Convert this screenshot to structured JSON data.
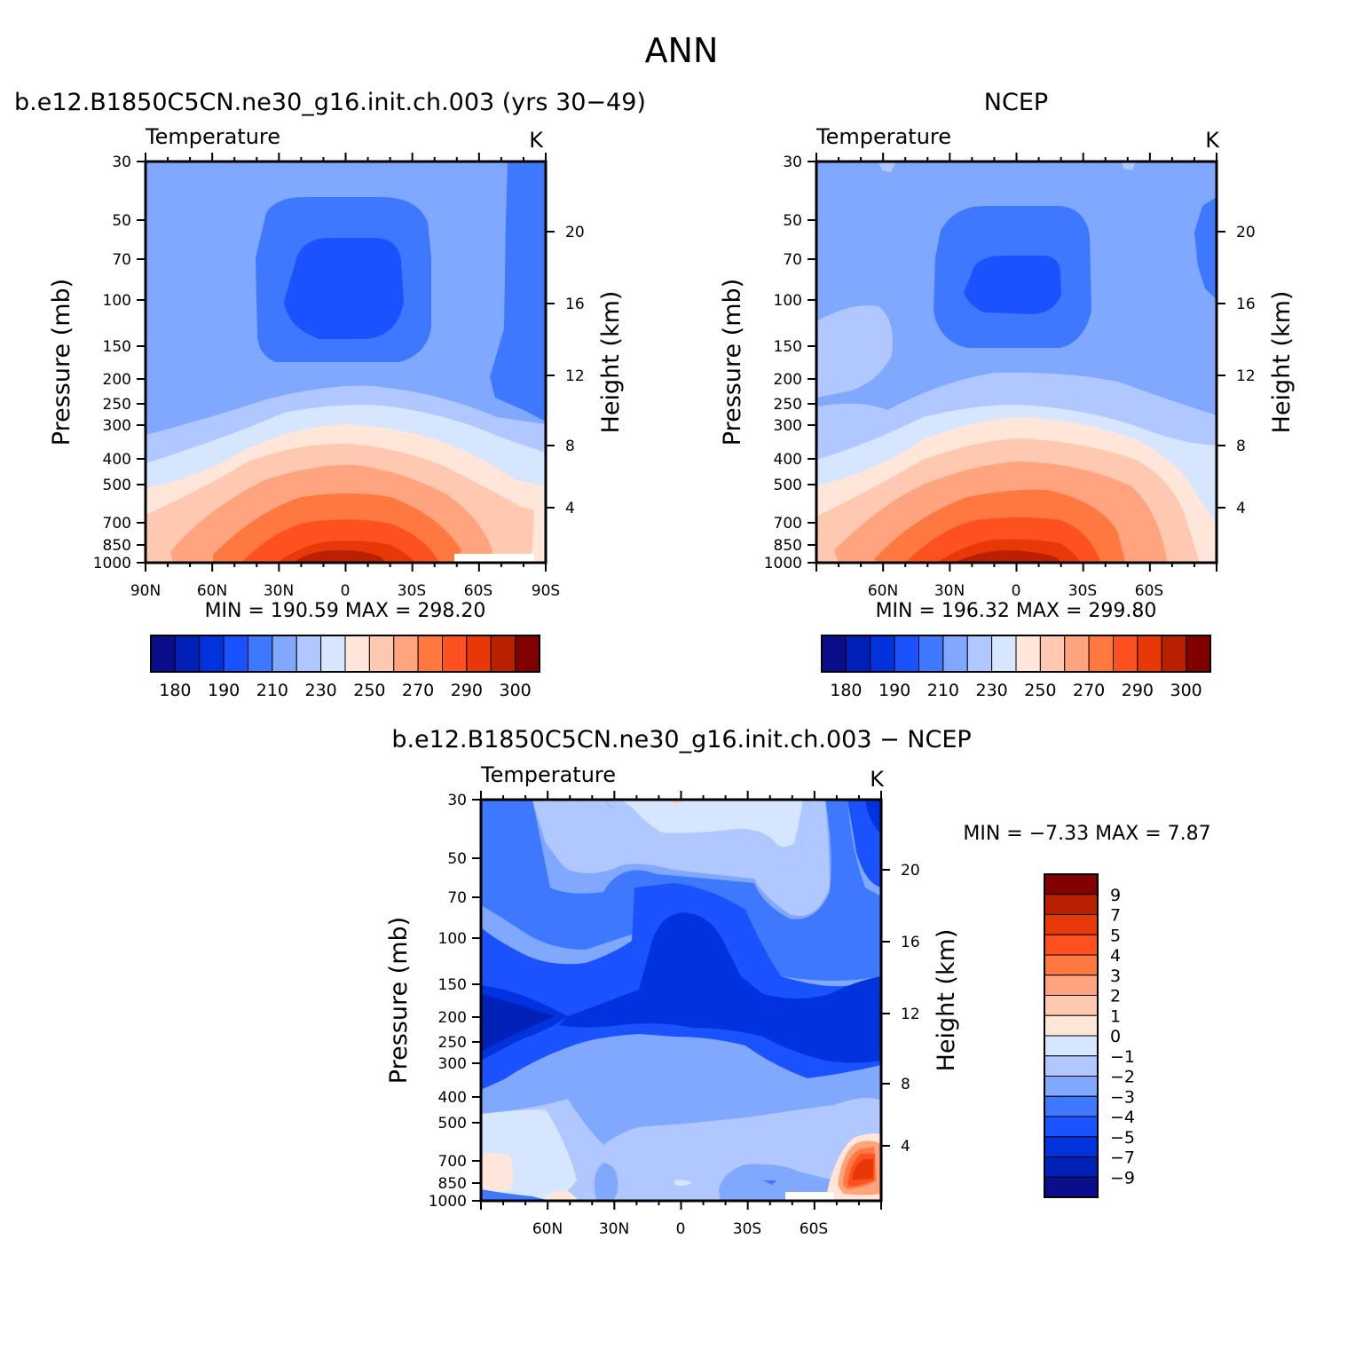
{
  "figure_title": "ANN",
  "panels": {
    "model": {
      "title": "b.e12.B1850C5CN.ne30_g16.init.ch.003 (yrs 30−49)",
      "min_max": "MIN =  190.59   MAX =  298.20"
    },
    "obs": {
      "title": "NCEP",
      "min_max": "MIN =  196.32   MAX =  299.80"
    },
    "diff": {
      "title": "b.e12.B1850C5CN.ne30_g16.init.ch.003 − NCEP",
      "min_max": "MIN =   −7.33   MAX =    7.87"
    }
  },
  "chart_data": [
    {
      "type": "heatmap",
      "panel": "model",
      "variable_label": "Temperature",
      "units": "K",
      "ylabel": "Pressure (mb)",
      "y2label": "Height (km)",
      "ylim": [
        1000,
        30
      ],
      "yscale": "log",
      "pressure_ticks": [
        "30",
        "50",
        "70",
        "100",
        "150",
        "200",
        "250",
        "300",
        "400",
        "500",
        "700",
        "850",
        "1000"
      ],
      "height_ticks": [
        "20",
        "16",
        "12",
        "8",
        "4"
      ],
      "x_ticks": [
        "90N",
        "60N",
        "30N",
        "0",
        "30S",
        "60S",
        "90S"
      ],
      "xlim": [
        90,
        -90
      ],
      "min": 190.59,
      "max": 298.2,
      "colorbar_labels": [
        "180",
        "190",
        "210",
        "230",
        "250",
        "270",
        "290",
        "300"
      ],
      "colors": [
        "#0a0e8c",
        "#0020b8",
        "#0033dd",
        "#1a52ff",
        "#3d78ff",
        "#80a8ff",
        "#b0c8ff",
        "#d6e6ff",
        "#ffe6d8",
        "#ffc8b0",
        "#ffa47e",
        "#ff7840",
        "#ff5020",
        "#e83808",
        "#b82000",
        "#800000"
      ]
    },
    {
      "type": "heatmap",
      "panel": "obs",
      "variable_label": "Temperature",
      "units": "K",
      "ylabel": "Pressure (mb)",
      "y2label": "Height (km)",
      "ylim": [
        1000,
        30
      ],
      "yscale": "log",
      "pressure_ticks": [
        "30",
        "50",
        "70",
        "100",
        "150",
        "200",
        "250",
        "300",
        "400",
        "500",
        "700",
        "850",
        "1000"
      ],
      "height_ticks": [
        "20",
        "16",
        "12",
        "8",
        "4"
      ],
      "x_ticks": [
        "60N",
        "30N",
        "0",
        "30S",
        "60S"
      ],
      "xlim": [
        90,
        -90
      ],
      "min": 196.32,
      "max": 299.8,
      "colorbar_labels": [
        "180",
        "190",
        "210",
        "230",
        "250",
        "270",
        "290",
        "300"
      ],
      "colors": [
        "#0a0e8c",
        "#0020b8",
        "#0033dd",
        "#1a52ff",
        "#3d78ff",
        "#80a8ff",
        "#b0c8ff",
        "#d6e6ff",
        "#ffe6d8",
        "#ffc8b0",
        "#ffa47e",
        "#ff7840",
        "#ff5020",
        "#e83808",
        "#b82000",
        "#800000"
      ]
    },
    {
      "type": "heatmap",
      "panel": "diff",
      "variable_label": "Temperature",
      "units": "K",
      "ylabel": "Pressure (mb)",
      "y2label": "Height (km)",
      "ylim": [
        1000,
        30
      ],
      "yscale": "log",
      "pressure_ticks": [
        "30",
        "50",
        "70",
        "100",
        "150",
        "200",
        "250",
        "300",
        "400",
        "500",
        "700",
        "850",
        "1000"
      ],
      "height_ticks": [
        "20",
        "16",
        "12",
        "8",
        "4"
      ],
      "x_ticks": [
        "60N",
        "30N",
        "0",
        "30S",
        "60S"
      ],
      "xlim": [
        90,
        -90
      ],
      "min": -7.33,
      "max": 7.87,
      "colorbar_labels": [
        "9",
        "7",
        "5",
        "4",
        "3",
        "2",
        "1",
        "0",
        "−1",
        "−2",
        "−3",
        "−4",
        "−5",
        "−7",
        "−9"
      ],
      "colors": [
        "#800000",
        "#b82000",
        "#e83808",
        "#ff5020",
        "#ff7840",
        "#ffa47e",
        "#ffc8b0",
        "#ffe6d8",
        "#d6e6ff",
        "#b0c8ff",
        "#80a8ff",
        "#3d78ff",
        "#1a52ff",
        "#0033dd",
        "#0020b8",
        "#0a0e8c"
      ]
    }
  ]
}
